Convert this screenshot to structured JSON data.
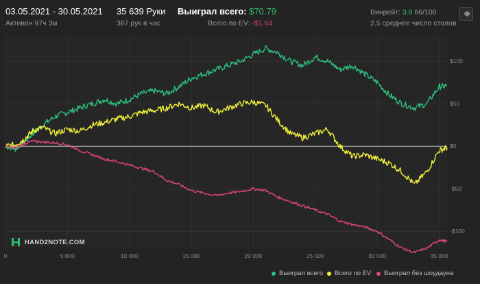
{
  "header": {
    "date_range": "03.05.2021 - 30.05.2021",
    "active": "Активен 97ч 3м",
    "hands": "35 639 Руки",
    "hands_per_hour": "367 рук в час",
    "won_total_label": "Выиграл всего:",
    "won_total_value": "$70.79",
    "ev_label": "Всего по EV:",
    "ev_value": "-$1.64",
    "winrate_label": "Винрейт:",
    "winrate_value": "3.8",
    "winrate_rest": "66/100",
    "tables": "2.5 среднее число столов"
  },
  "logo": {
    "text": "HAND2NOTE.COM"
  },
  "colors": {
    "won": "#2ec27e",
    "ev": "#f2f23a",
    "showdown": "#e0457b",
    "background": "#232323"
  },
  "chart_data": {
    "type": "line",
    "xlim": [
      0,
      35639
    ],
    "ylim": [
      -120,
      130
    ],
    "x_ticks": [
      0,
      5000,
      10000,
      15000,
      20000,
      25000,
      30000,
      35000
    ],
    "x_tick_labels": [
      "0",
      "5 000",
      "10 000",
      "15 000",
      "20 000",
      "25 000",
      "30 000",
      "35 000"
    ],
    "y_ticks": [
      100,
      50,
      0,
      -50,
      -100
    ],
    "y_tick_labels": [
      "$100",
      "$50",
      "$0",
      "-$50",
      "-$100"
    ],
    "grid": true,
    "legend_position": "bottom-right",
    "series": [
      {
        "name": "Выиграл всего",
        "color_key": "won",
        "x": [
          0,
          800,
          1500,
          2200,
          3000,
          4000,
          5000,
          6000,
          7000,
          8000,
          9000,
          10000,
          11000,
          12000,
          13000,
          14000,
          15000,
          16000,
          17000,
          18000,
          19000,
          20000,
          21000,
          22000,
          23000,
          24000,
          25000,
          26000,
          27000,
          28000,
          29000,
          30000,
          31000,
          32000,
          33000,
          34000,
          35000,
          35639
        ],
        "values": [
          0,
          -3,
          5,
          15,
          25,
          35,
          40,
          45,
          50,
          55,
          50,
          55,
          62,
          65,
          62,
          70,
          80,
          85,
          90,
          95,
          100,
          108,
          115,
          110,
          100,
          95,
          105,
          100,
          90,
          95,
          85,
          75,
          60,
          50,
          45,
          50,
          70,
          70.79
        ]
      },
      {
        "name": "Всего по EV",
        "color_key": "ev",
        "x": [
          0,
          800,
          1500,
          2200,
          3000,
          4000,
          5000,
          6000,
          7000,
          8000,
          9000,
          10000,
          11000,
          12000,
          13000,
          14000,
          15000,
          16000,
          17000,
          18000,
          19000,
          20000,
          21000,
          22000,
          23000,
          24000,
          25000,
          26000,
          27000,
          28000,
          29000,
          30000,
          31000,
          32000,
          33000,
          34000,
          35000,
          35639
        ],
        "values": [
          0,
          2,
          8,
          18,
          22,
          15,
          20,
          18,
          25,
          28,
          32,
          35,
          40,
          42,
          45,
          50,
          45,
          48,
          40,
          45,
          50,
          52,
          48,
          30,
          15,
          10,
          15,
          20,
          0,
          -12,
          -10,
          -15,
          -20,
          -30,
          -45,
          -30,
          -5,
          -1.64
        ]
      },
      {
        "name": "Выиграл без шоудауна",
        "color_key": "showdown",
        "x": [
          0,
          800,
          1500,
          2200,
          3000,
          4000,
          5000,
          6000,
          7000,
          8000,
          9000,
          10000,
          11000,
          12000,
          13000,
          14000,
          15000,
          16000,
          17000,
          18000,
          19000,
          20000,
          21000,
          22000,
          23000,
          24000,
          25000,
          26000,
          27000,
          28000,
          29000,
          30000,
          31000,
          32000,
          33000,
          34000,
          35000,
          35639
        ],
        "values": [
          0,
          -2,
          3,
          6,
          5,
          4,
          2,
          -5,
          -10,
          -15,
          -18,
          -22,
          -26,
          -30,
          -40,
          -45,
          -52,
          -55,
          -58,
          -55,
          -53,
          -50,
          -52,
          -60,
          -65,
          -70,
          -75,
          -80,
          -88,
          -92,
          -95,
          -100,
          -110,
          -120,
          -125,
          -120,
          -110,
          -112
        ]
      }
    ]
  }
}
